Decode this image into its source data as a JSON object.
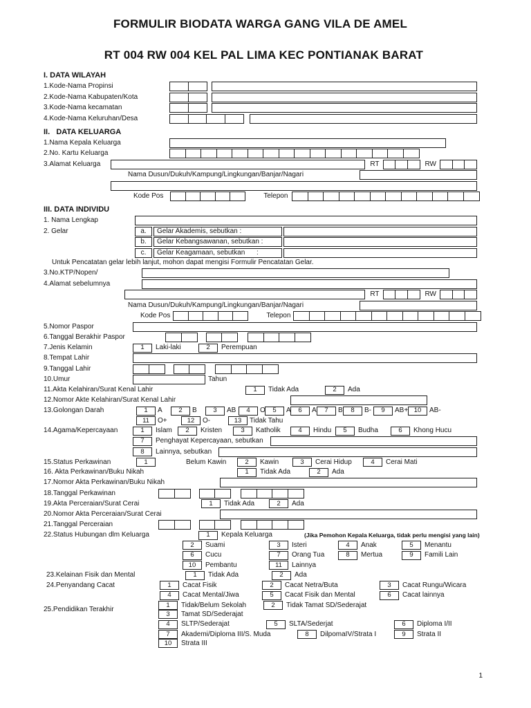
{
  "title": {
    "line1": "FORMULIR BIODATA WARGA GANG VILA DE AMEL",
    "line2": "RT 004 RW 004 KEL PAL LIMA KEC PONTIANAK BARAT"
  },
  "page_number": "1",
  "labels": {
    "rt": "RT",
    "rw": "RW",
    "dusun": "Nama Dusun/Dukuh/Kampung/Lingkungan/Banjar/Nagari",
    "kode_pos": "Kode Pos",
    "telepon": "Telepon",
    "tahun": "Tahun"
  },
  "section1": {
    "heading": "I. DATA WILAYAH",
    "rows": [
      "1.Kode-Nama Propinsi",
      "2.Kode-Nama Kabupaten/Kota",
      "3.Kode-Nama kecamatan",
      "4.Kode-Nama Keluruhan/Desa"
    ]
  },
  "section2": {
    "heading": "II.   DATA KELUARGA",
    "r1": "1.Nama Kepala Keluarga",
    "r2": "2.No. Kartu Keluarga",
    "r3": "3.Alamat Keluarga"
  },
  "section3": {
    "heading": "III. DATA INDIVIDU",
    "r1": "1. Nama Lengkap",
    "r2": "2. Gelar",
    "gelar": [
      {
        "n": "a.",
        "t": "Gelar Akademis, sebutkan :"
      },
      {
        "n": "b.",
        "t": "Gelar Kebangsawanan, sebutkan :"
      },
      {
        "n": "c.",
        "t": "Gelar Keagamaan, sebutkan      :"
      }
    ],
    "gelar_note": "Untuk Pencatatan gelar lebih lanjut, mohon dapat mengisi Formulir Pencatatan Gelar.",
    "r3": "3.No.KTP/Nopen/",
    "r4": "4.Alamat sebelumnya",
    "r5": "5.Nomor Paspor",
    "r6": "6.Tanggal Berakhir Paspor",
    "r7": "7.Jenis Kelamin",
    "r7_opts": [
      {
        "n": "1",
        "t": "Laki-laki"
      },
      {
        "n": "2",
        "t": "Perempuan"
      }
    ],
    "r8": "8.Tempat Lahir",
    "r9": "9.Tanggal Lahir",
    "r10": "10.Umur",
    "r11": "11.Akta Kelahiran/Surat Kenal Lahir",
    "r11_opts": [
      {
        "n": "1",
        "t": "Tidak Ada"
      },
      {
        "n": "2",
        "t": "Ada"
      }
    ],
    "r12": "12.Nomor Akte Kelahiran/Surat Kenal Lahir",
    "r13": "13.Golongan Darah",
    "r13_opts1": [
      {
        "n": "1",
        "t": "A"
      },
      {
        "n": "2",
        "t": "B"
      },
      {
        "n": "3",
        "t": "AB"
      },
      {
        "n": "4",
        "t": "O"
      },
      {
        "n": "5",
        "t": "A+"
      },
      {
        "n": "6",
        "t": "A-"
      },
      {
        "n": "7",
        "t": "B+"
      },
      {
        "n": "8",
        "t": "B-"
      },
      {
        "n": "9",
        "t": "AB+"
      },
      {
        "n": "10",
        "t": "AB-"
      }
    ],
    "r13_opts2": [
      {
        "n": "11",
        "t": "O+"
      },
      {
        "n": "12",
        "t": "O-"
      },
      {
        "n": "13",
        "t": "Tidak Tahu"
      }
    ],
    "r14": "14.Agama/Kepercayaan",
    "r14_opts1": [
      {
        "n": "1",
        "t": "Islam"
      },
      {
        "n": "2",
        "t": "Kristen"
      },
      {
        "n": "3",
        "t": "Katholik"
      },
      {
        "n": "4",
        "t": "Hindu"
      },
      {
        "n": "5",
        "t": "Budha"
      },
      {
        "n": "6",
        "t": "Khong Hucu"
      }
    ],
    "r14_opt7": {
      "n": "7",
      "t": "Penghayat Kepercayaan, sebutkan"
    },
    "r14_opt8": {
      "n": "8",
      "t": "Lainnya, sebutkan"
    },
    "r15": "15.Status Perkawinan",
    "r15_opts": [
      {
        "n": "1",
        "t": "Belum Kawin"
      },
      {
        "n": "2",
        "t": "Kawin"
      },
      {
        "n": "3",
        "t": "Cerai Hidup"
      },
      {
        "n": "4",
        "t": "Cerai Mati"
      }
    ],
    "r16": "16. Akta Perkawinan/Buku Nikah",
    "r16_opts": [
      {
        "n": "1",
        "t": "Tidak Ada"
      },
      {
        "n": "2",
        "t": "Ada"
      }
    ],
    "r17": "17.Nomor Akta Perkawinan/Buku Nikah",
    "r18": "18.Tanggal Perkawinan",
    "r19": "19.Akta Perceraian/Surat Cerai",
    "r19_opts": [
      {
        "n": "1",
        "t": "Tidak Ada"
      },
      {
        "n": "2",
        "t": "Ada"
      }
    ],
    "r20": "20.Nomor Akta Perceraian/Surat Cerai",
    "r21": "21.Tanggal Perceraian",
    "r22": "22.Status Hubungan dlm Keluarga",
    "r22_opt1": {
      "n": "1",
      "t": "Kepala Keluarga"
    },
    "r22_note": "(Jika Pemohon Kepala Keluarga, tidak perlu mengisi yang lain)",
    "r22_opts2": [
      {
        "n": "2",
        "t": "Suami"
      },
      {
        "n": "3",
        "t": "Isteri"
      },
      {
        "n": "4",
        "t": "Anak"
      },
      {
        "n": "5",
        "t": "Menantu"
      }
    ],
    "r22_opts3": [
      {
        "n": "6",
        "t": "Cucu"
      },
      {
        "n": "7",
        "t": "Orang Tua"
      },
      {
        "n": "8",
        "t": "Mertua"
      },
      {
        "n": "9",
        "t": "Famili Lain"
      }
    ],
    "r22_opts4": [
      {
        "n": "10",
        "t": "Pembantu"
      },
      {
        "n": "11",
        "t": "Lainnya"
      }
    ],
    "r23": "23.Kelainan Fisik dan Mental",
    "r23_opts": [
      {
        "n": "1",
        "t": "Tidak Ada"
      },
      {
        "n": "2",
        "t": "Ada"
      }
    ],
    "r24": "24.Penyandang Cacat",
    "r24_opts1": [
      {
        "n": "1",
        "t": "Cacat Fisik"
      },
      {
        "n": "2",
        "t": "Cacat Netra/Buta"
      },
      {
        "n": "3",
        "t": "Cacat Rungu/Wicara"
      }
    ],
    "r24_opts2": [
      {
        "n": "4",
        "t": "Cacat Mental/Jiwa"
      },
      {
        "n": "5",
        "t": "Cacat Fisik dan Mental"
      },
      {
        "n": "6",
        "t": "Cacat lainnya"
      }
    ],
    "r25": "25.Pendidikan Terakhir",
    "r25_opts1": [
      {
        "n": "1",
        "t": "Tidak/Belum Sekolah"
      },
      {
        "n": "2",
        "t": "Tidak Tamat SD/Sederajat"
      },
      {
        "n": "3",
        "t": "Tamat SD/Sederajat"
      }
    ],
    "r25_opts2": [
      {
        "n": "4",
        "t": "SLTP/Sederajat"
      },
      {
        "n": "5",
        "t": "SLTA/Sederjat"
      },
      {
        "n": "6",
        "t": "Diploma I/II"
      }
    ],
    "r25_opts3": [
      {
        "n": "7",
        "t": "Akademi/Diploma III/S. Muda"
      },
      {
        "n": "8",
        "t": "DilpomaIV/Strata I"
      },
      {
        "n": "9",
        "t": "Strata II"
      },
      {
        "n": "10",
        "t": "Strata III"
      }
    ]
  }
}
